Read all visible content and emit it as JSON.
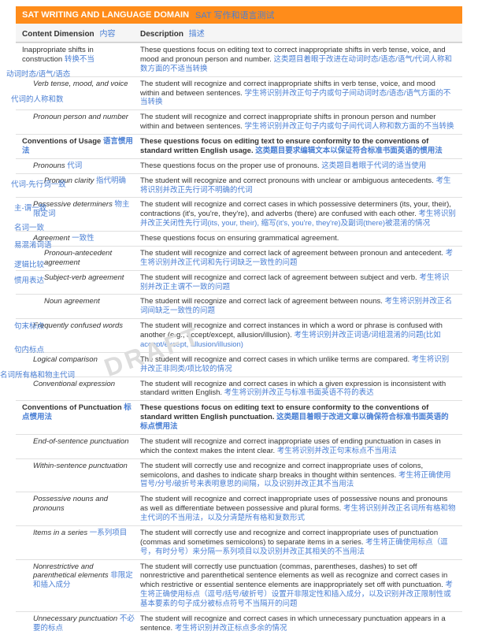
{
  "header": {
    "title": "SAT WRITING AND LANGUAGE DOMAIN",
    "title_cn": "SAT 写作和语言测试"
  },
  "columns": {
    "c1": "Content Dimension",
    "c1_cn": "内容",
    "c2": "Description",
    "c2_cn": "描述"
  },
  "watermark": "DRAFT",
  "side": {
    "s1": "动词时态/语气/语态",
    "s2": "代词的人称和数",
    "s3": "代词-先行词一致",
    "s4": "主-谓一致",
    "s5": "名词一致",
    "s6": "易混淆词语",
    "s7": "逻辑比较",
    "s8": "惯用表达",
    "s9": "句末标点",
    "s10": "句内标点",
    "s11": "名词所有格和物主代词"
  },
  "rows": [
    {
      "lvl": 0,
      "label": "Inappropriate shifts in construction",
      "label_cn": "转换不当",
      "desc": "These questions focus on editing text to correct inappropriate shifts in verb tense, voice, and mood and pronoun person and number.",
      "desc_cn": "这类题目着眼于改进在动词时态/语态/语气/代词人称和数方面的不适当转换"
    },
    {
      "lvl": 1,
      "label": "Verb tense, mood, and voice",
      "desc": "The student will recognize and correct inappropriate shifts in verb tense, voice, and mood within and between sentences.",
      "desc_cn": "学生将识别并改正句子内或句子间动词时态/语态/语气方面的不当转换"
    },
    {
      "lvl": 1,
      "label": "Pronoun person and number",
      "desc": "The student will recognize and correct inappropriate shifts in pronoun person and number within and between sentences.",
      "desc_cn": "学生将识别并改正句子内或句子间代词人称和数方面的不当转换"
    },
    {
      "lvl": 0,
      "section": true,
      "label": "Conventions of Usage",
      "label_cn": "语言惯用法",
      "desc": "These questions focus on editing text to ensure conformity to the conventions of standard written English usage.",
      "desc_cn": "这类题目要求编辑文本以保证符合标准书面英语的惯用法"
    },
    {
      "lvl": 1,
      "label": "Pronouns",
      "label_cn": "代词",
      "desc": "These questions focus on the proper use of pronouns.",
      "desc_cn": "这类题目着眼于代词的适当使用"
    },
    {
      "lvl": 2,
      "label": "Pronoun clarity",
      "label_cn": "指代明确",
      "desc": "The student will recognize and correct pronouns with unclear or ambiguous antecedents.",
      "desc_cn": "考生将识别并改正先行词不明确的代词"
    },
    {
      "lvl": 1,
      "label": "Possessive determiners",
      "label_cn": "物主限定词",
      "desc": "The student will recognize and correct cases in which possessive determiners (its, your, their), contractions (it's, you're, they're), and adverbs (there) are confused with each other.",
      "desc_cn": "考生将识别并改正关闭性先行词(its, your, their), 缩写(it's, you're, they're)及副词(there)被混淆的情况"
    },
    {
      "lvl": 1,
      "label": "Agreement",
      "label_cn": "一致性",
      "desc": "These questions focus on ensuring grammatical agreement.",
      "desc_cn": ""
    },
    {
      "lvl": 2,
      "label": "Pronoun-antecedent agreement",
      "desc": "The student will recognize and correct lack of agreement between pronoun and antecedent.",
      "desc_cn": "考生将识别并改正代词和先行词缺乏一致性的问题"
    },
    {
      "lvl": 2,
      "label": "Subject-verb agreement",
      "desc": "The student will recognize and correct lack of agreement between subject and verb.",
      "desc_cn": "考生将识别并改正主谓不一致的问题"
    },
    {
      "lvl": 2,
      "label": "Noun agreement",
      "desc": "The student will recognize and correct lack of agreement between nouns.",
      "desc_cn": "考生将识别并改正名词间缺乏一致性的问题"
    },
    {
      "lvl": 1,
      "label": "Frequently confused words",
      "desc": "The student will recognize and correct instances in which a word or phrase is confused with another (e.g., accept/except, allusion/illusion).",
      "desc_cn": "考生将识别并改正词语/词组混淆的问题(比如 accept/except, allusion/illusion)"
    },
    {
      "lvl": 1,
      "label": "Logical comparison",
      "desc": "The student will recognize and correct cases in which unlike terms are compared.",
      "desc_cn": "考生将识别并改正非同类/项比较的情况"
    },
    {
      "lvl": 1,
      "label": "Conventional expression",
      "desc": "The student will recognize and correct cases in which a given expression is inconsistent with standard written English.",
      "desc_cn": "考生将识别并改正与标准书面英语不符的表达"
    },
    {
      "lvl": 0,
      "section": true,
      "label": "Conventions of Punctuation",
      "label_cn": "标点惯用法",
      "desc": "These questions focus on editing text to ensure conformity to the conventions of standard written English punctuation.",
      "desc_cn": "这类题目着眼于改进文章以确保符合标准书面英语的标点惯用法"
    },
    {
      "lvl": 1,
      "label": "End-of-sentence punctuation",
      "desc": "The student will recognize and correct inappropriate uses of ending punctuation in cases in which the context makes the intent clear.",
      "desc_cn": "考生将识别并改正句末标点不当用法"
    },
    {
      "lvl": 1,
      "label": "Within-sentence punctuation",
      "desc": "The student will correctly use and recognize and correct inappropriate uses of colons, semicolons, and dashes to indicate sharp breaks in thought within sentences.",
      "desc_cn": "考生将正确使用冒号/分号/破折号来表明意思的间隔，以及识别并改正其不当用法"
    },
    {
      "lvl": 1,
      "label": "Possessive nouns and pronouns",
      "desc": "The student will recognize and correct inappropriate uses of possessive nouns and pronouns as well as differentiate between possessive and plural forms.",
      "desc_cn": "考生将识别并改正名词所有格和物主代词的不当用法，以及分清楚所有格和复数形式"
    },
    {
      "lvl": 1,
      "label": "Items in a series",
      "label_cn": "一系列项目",
      "desc": "The student will correctly use and recognize and correct inappropriate uses of punctuation (commas and sometimes semicolons) to separate items in a series.",
      "desc_cn": "考生将正确使用标点（逗号，有时分号）来分隔一系列项目以及识别并改正其相关的不当用法"
    },
    {
      "lvl": 1,
      "label": "Nonrestrictive and parenthetical elements",
      "label_cn": "非限定和插入成分",
      "desc": "The student will correctly use punctuation (commas, parentheses, dashes) to set off nonrestrictive and parenthetical sentence elements as well as recognize and correct cases in which restrictive or essential sentence elements are inappropriately set off with punctuation.",
      "desc_cn": "考生将正确使用标点（逗号/括号/破折号）设置开非限定性和插入成分，以及识别并改正限制性或基本要素的句子成分被标点符号不当隔开的问题"
    },
    {
      "lvl": 1,
      "label": "Unnecessary punctuation",
      "label_cn": "不必要的标点",
      "desc": "The student will recognize and correct cases in which unnecessary punctuation appears in a sentence.",
      "desc_cn": "考生将识别并改正标点多余的情况"
    }
  ]
}
